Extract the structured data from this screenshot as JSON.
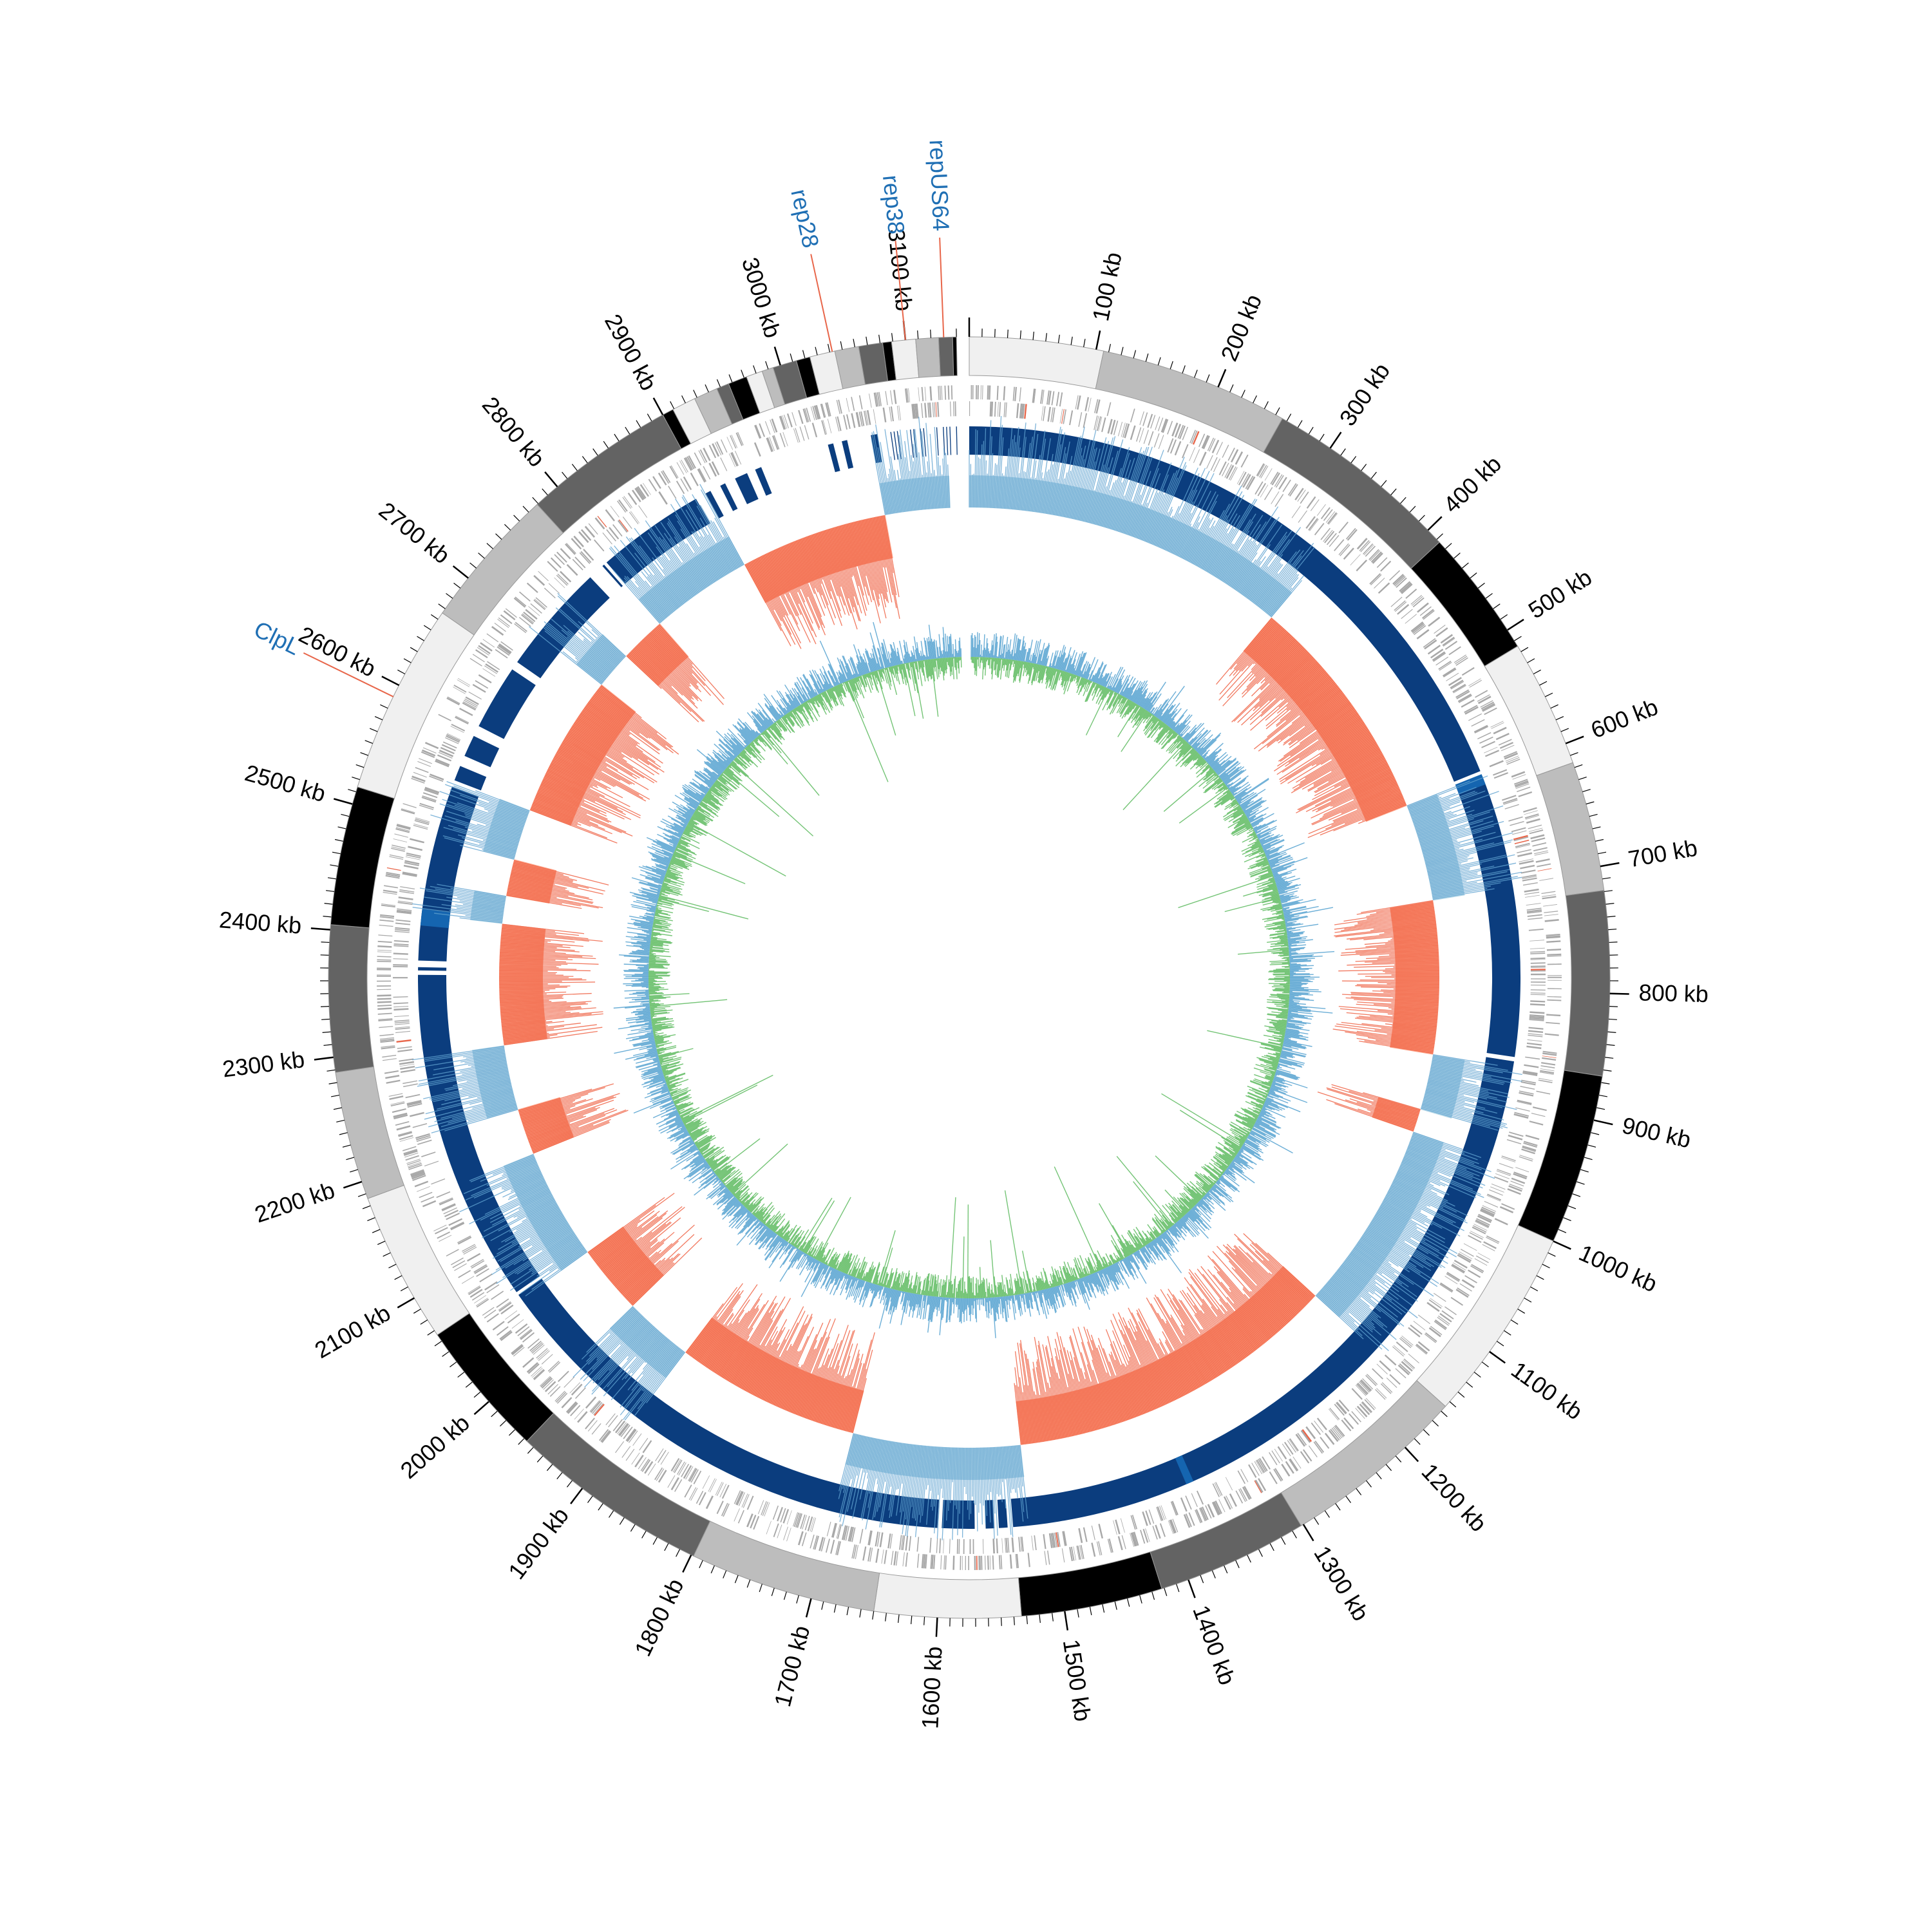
{
  "genome": {
    "length_kb": 3140,
    "gap_kb": 10
  },
  "tick_labels": [
    "100 kb",
    "200 kb",
    "300 kb",
    "400 kb",
    "500 kb",
    "600 kb",
    "700 kb",
    "800 kb",
    "900 kb",
    "1000 kb",
    "1100 kb",
    "1200 kb",
    "1300 kb",
    "1400 kb",
    "1500 kb",
    "1600 kb",
    "1700 kb",
    "1800 kb",
    "1900 kb",
    "2000 kb",
    "2100 kb",
    "2200 kb",
    "2300 kb",
    "2400 kb",
    "2500 kb",
    "2600 kb",
    "2700 kb",
    "2800 kb",
    "2900 kb",
    "3000 kb",
    "3100 kb"
  ],
  "tick_positions_kb": [
    100,
    200,
    300,
    400,
    500,
    600,
    700,
    800,
    900,
    1000,
    1100,
    1200,
    1300,
    1400,
    1500,
    1600,
    1700,
    1800,
    1900,
    2000,
    2100,
    2200,
    2300,
    2400,
    2500,
    2600,
    2700,
    2800,
    2900,
    3000,
    3100
  ],
  "gene_labels": [
    {
      "text": "repUS64",
      "kb": 3130
    },
    {
      "text": "rep38",
      "kb": 3100
    },
    {
      "text": "rep28",
      "kb": 3042
    },
    {
      "text": "ClpL",
      "kb": 2590
    }
  ],
  "colors": {
    "label_blue": "#1f6fb4",
    "leader_red": "#e8664a",
    "contig_dark": "#0b3d7e",
    "contig_mid": "#1565b0",
    "gc_skew_pos": "#fb8a6a",
    "gc_skew_neg": "#9ecae1",
    "gc_content_blue": "#6baed6",
    "gc_content_green": "#74c476",
    "gene_grey": "#a8a8a8",
    "band_shades": [
      "#f0f0f0",
      "#bdbdbd",
      "#636363",
      "#000000"
    ]
  },
  "skew_segments_kb": [
    {
      "start": 0,
      "end": 350,
      "sign": "neg"
    },
    {
      "start": 350,
      "end": 600,
      "sign": "pos"
    },
    {
      "start": 600,
      "end": 705,
      "sign": "neg"
    },
    {
      "start": 705,
      "end": 870,
      "sign": "pos"
    },
    {
      "start": 870,
      "end": 930,
      "sign": "neg"
    },
    {
      "start": 930,
      "end": 955,
      "sign": "pos"
    },
    {
      "start": 955,
      "end": 1160,
      "sign": "neg"
    },
    {
      "start": 1160,
      "end": 1520,
      "sign": "pos"
    },
    {
      "start": 1520,
      "end": 1700,
      "sign": "neg"
    },
    {
      "start": 1700,
      "end": 1900,
      "sign": "pos"
    },
    {
      "start": 1900,
      "end": 1975,
      "sign": "neg"
    },
    {
      "start": 1975,
      "end": 2050,
      "sign": "pos"
    },
    {
      "start": 2050,
      "end": 2170,
      "sign": "neg"
    },
    {
      "start": 2170,
      "end": 2220,
      "sign": "pos"
    },
    {
      "start": 2220,
      "end": 2290,
      "sign": "neg"
    },
    {
      "start": 2290,
      "end": 2420,
      "sign": "pos"
    },
    {
      "start": 2420,
      "end": 2450,
      "sign": "neg"
    },
    {
      "start": 2450,
      "end": 2490,
      "sign": "pos"
    },
    {
      "start": 2490,
      "end": 2545,
      "sign": "neg"
    },
    {
      "start": 2545,
      "end": 2700,
      "sign": "pos"
    },
    {
      "start": 2700,
      "end": 2740,
      "sign": "neg"
    },
    {
      "start": 2740,
      "end": 2790,
      "sign": "pos"
    },
    {
      "start": 2790,
      "end": 2900,
      "sign": "neg"
    },
    {
      "start": 2900,
      "end": 3060,
      "sign": "pos"
    },
    {
      "start": 3060,
      "end": 3130,
      "sign": "neg"
    }
  ]
}
